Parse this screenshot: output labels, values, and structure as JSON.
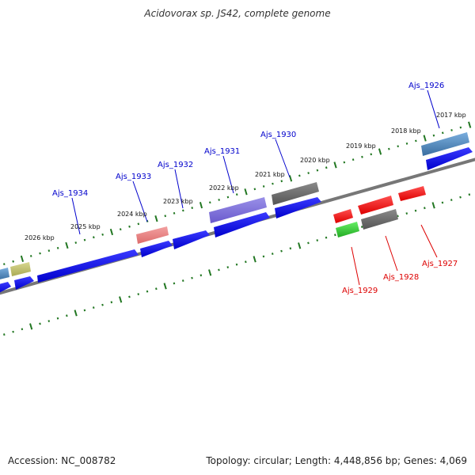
{
  "title": "Acidovorax sp. JS42, complete genome",
  "footer": {
    "accession": "Accession: NC_008782",
    "summary": "Topology: circular; Length: 4,448,856 bp; Genes: 4,069"
  },
  "colors": {
    "backbone": "#777777",
    "tick": "#227722",
    "forward_label": "#0000cc",
    "reverse_label": "#dd0000"
  },
  "kbp_labels": [
    "2017 kbp",
    "2018 kbp",
    "2019 kbp",
    "2020 kbp",
    "2021 kbp",
    "2022 kbp",
    "2023 kbp",
    "2024 kbp",
    "2025 kbp",
    "2026 kbp"
  ],
  "gene_labels": {
    "Ajs_1926": "Ajs_1926",
    "Ajs_1927": "Ajs_1927",
    "Ajs_1928": "Ajs_1928",
    "Ajs_1929": "Ajs_1929",
    "Ajs_1930": "Ajs_1930",
    "Ajs_1931": "Ajs_1931",
    "Ajs_1932": "Ajs_1932",
    "Ajs_1933": "Ajs_1933",
    "Ajs_1934": "Ajs_1934"
  }
}
